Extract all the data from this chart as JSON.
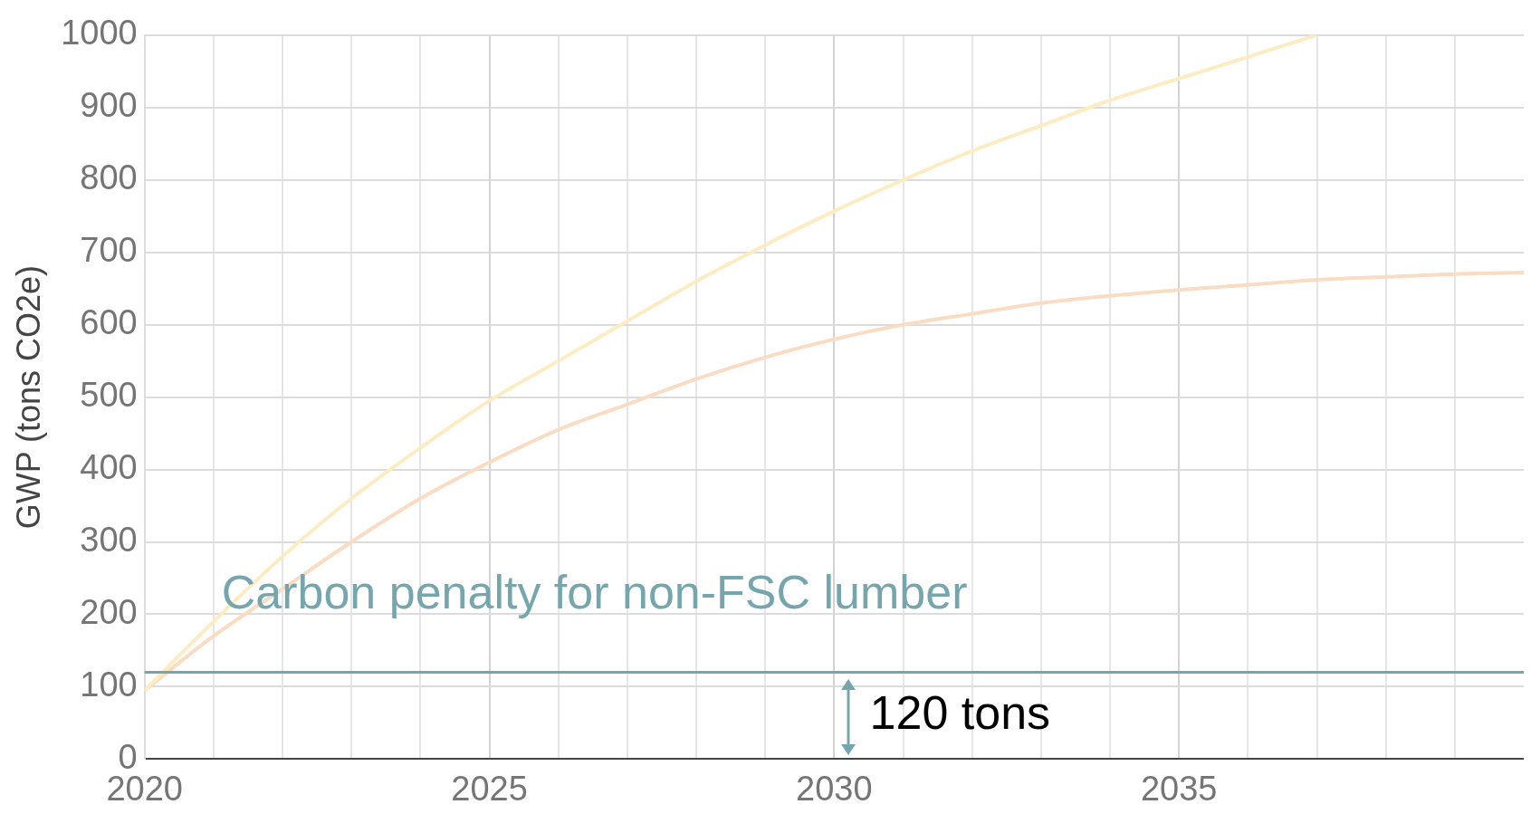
{
  "chart_data": {
    "type": "line",
    "ylabel": "GWP (tons CO2e)",
    "x": [
      2020,
      2021,
      2022,
      2023,
      2024,
      2025,
      2026,
      2027,
      2028,
      2029,
      2030,
      2031,
      2032,
      2033,
      2034,
      2035,
      2036,
      2037,
      2038,
      2039,
      2040
    ],
    "series": [
      {
        "color": "#fdecc2",
        "values": [
          95,
          190,
          280,
          360,
          430,
          495,
          550,
          605,
          660,
          710,
          757,
          800,
          840,
          875,
          910,
          940,
          970,
          1000,
          null,
          null,
          null
        ]
      },
      {
        "color": "#f9dcc2",
        "values": [
          95,
          170,
          235,
          300,
          360,
          410,
          455,
          490,
          525,
          555,
          580,
          600,
          615,
          630,
          640,
          648,
          655,
          662,
          666,
          670,
          672
        ]
      }
    ],
    "xlim": [
      2020,
      2040
    ],
    "xticks": [
      2020,
      {
        "value": 2021,
        "label": null
      },
      {
        "value": 2022,
        "label": null
      },
      {
        "value": 2023,
        "label": null
      },
      {
        "value": 2024,
        "label": null
      },
      2025,
      {
        "value": 2026,
        "label": null
      },
      {
        "value": 2027,
        "label": null
      },
      {
        "value": 2028,
        "label": null
      },
      {
        "value": 2029,
        "label": null
      },
      2030,
      {
        "value": 2031,
        "label": null
      },
      {
        "value": 2032,
        "label": null
      },
      {
        "value": 2033,
        "label": null
      },
      {
        "value": 2034,
        "label": null
      },
      2035,
      {
        "value": 2036,
        "label": null
      },
      {
        "value": 2037,
        "label": null
      },
      {
        "value": 2038,
        "label": null
      },
      {
        "value": 2039,
        "label": null
      }
    ],
    "ylim": [
      0,
      1000
    ],
    "yticks": [
      0,
      100,
      200,
      300,
      400,
      500,
      600,
      700,
      800,
      900,
      1000
    ],
    "grid": true,
    "marker": "none",
    "line_style": "solid",
    "ref_lines": [
      {
        "axis": "y",
        "value": 120,
        "label": "Carbon penalty for non-FSC lumber",
        "color": "#76a6ad"
      }
    ],
    "annotations": [
      "120 tons"
    ]
  }
}
